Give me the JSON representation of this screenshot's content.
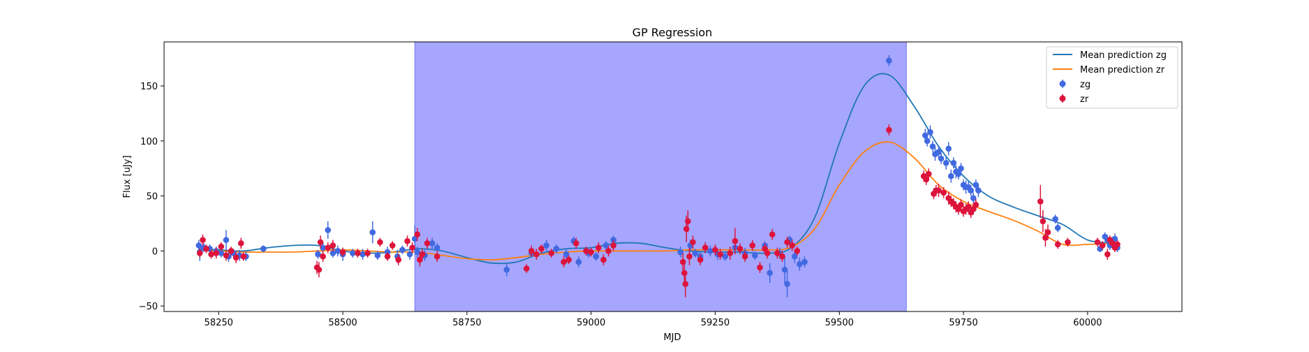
{
  "chart_data": {
    "type": "scatter",
    "title": "GP Regression",
    "xlabel": "MJD",
    "ylabel": "Flux [uJy]",
    "xlim": [
      58140,
      60190
    ],
    "ylim": [
      -55,
      190
    ],
    "xticks": [
      58250,
      58500,
      58750,
      59000,
      59250,
      59500,
      59750,
      60000
    ],
    "yticks": [
      -50,
      0,
      50,
      100,
      150
    ],
    "grid": false,
    "legend_position": "top-right",
    "shaded_region": {
      "x_start": 58645,
      "x_end": 59635,
      "color": "#a6a6ff"
    },
    "series": [
      {
        "name": "Mean prediction zg",
        "kind": "line",
        "color": "#1f77b4",
        "x": [
          58210,
          58250,
          58300,
          58350,
          58400,
          58450,
          58500,
          58550,
          58600,
          58650,
          58700,
          58750,
          58800,
          58850,
          58900,
          58950,
          59000,
          59050,
          59100,
          59150,
          59200,
          59250,
          59300,
          59350,
          59400,
          59450,
          59500,
          59550,
          59600,
          59650,
          59700,
          59750,
          59800,
          59850,
          59900,
          59950,
          60000,
          60050
        ],
        "y": [
          2,
          1,
          0,
          3,
          5,
          5,
          0,
          -2,
          -1,
          2,
          0,
          -6,
          -11,
          -10,
          -2,
          2,
          3,
          7,
          7,
          3,
          0,
          -1,
          -1,
          -2,
          2,
          30,
          98,
          150,
          160,
          132,
          95,
          68,
          50,
          40,
          32,
          24,
          10,
          7
        ]
      },
      {
        "name": "Mean prediction zr",
        "kind": "line",
        "color": "#ff7f0e",
        "x": [
          58210,
          58250,
          58300,
          58350,
          58400,
          58450,
          58500,
          58550,
          58600,
          58650,
          58700,
          58750,
          58800,
          58850,
          58900,
          58950,
          59000,
          59050,
          59100,
          59150,
          59200,
          59250,
          59300,
          59350,
          59400,
          59450,
          59500,
          59550,
          59600,
          59650,
          59700,
          59750,
          59800,
          59850,
          59900,
          59950,
          60000,
          60050
        ],
        "y": [
          1,
          0,
          -1,
          -1,
          -1,
          0,
          1,
          0,
          -1,
          -1,
          -4,
          -7,
          -8,
          -6,
          -3,
          -1,
          0,
          0,
          0,
          0,
          1,
          1,
          1,
          1,
          3,
          20,
          60,
          90,
          99,
          85,
          60,
          45,
          36,
          28,
          18,
          6,
          6,
          7
        ]
      },
      {
        "name": "zg",
        "kind": "errorbar",
        "color": "#4169e1",
        "points": [
          [
            58210,
            5,
            5
          ],
          [
            58212,
            -1,
            8
          ],
          [
            58220,
            3,
            4
          ],
          [
            58232,
            2,
            4
          ],
          [
            58245,
            0,
            4
          ],
          [
            58255,
            -2,
            4
          ],
          [
            58265,
            10,
            9
          ],
          [
            58270,
            -5,
            5
          ],
          [
            58280,
            -2,
            4
          ],
          [
            58292,
            -4,
            5
          ],
          [
            58305,
            -5,
            4
          ],
          [
            58340,
            2,
            3
          ],
          [
            58450,
            -3,
            4
          ],
          [
            58460,
            3,
            5
          ],
          [
            58470,
            19,
            8
          ],
          [
            58480,
            -2,
            4
          ],
          [
            58490,
            0,
            5
          ],
          [
            58500,
            -3,
            6
          ],
          [
            58520,
            -2,
            4
          ],
          [
            58540,
            -3,
            5
          ],
          [
            58560,
            17,
            10
          ],
          [
            58570,
            -4,
            4
          ],
          [
            58590,
            -1,
            5
          ],
          [
            58610,
            -5,
            6
          ],
          [
            58620,
            1,
            4
          ],
          [
            58635,
            -3,
            5
          ],
          [
            58645,
            11,
            12
          ],
          [
            58650,
            -1,
            5
          ],
          [
            58665,
            -4,
            5
          ],
          [
            58680,
            7,
            5
          ],
          [
            58690,
            3,
            4
          ],
          [
            58830,
            -17,
            6
          ],
          [
            58880,
            -2,
            4
          ],
          [
            58910,
            5,
            5
          ],
          [
            58930,
            2,
            4
          ],
          [
            58950,
            -3,
            5
          ],
          [
            58965,
            9,
            4
          ],
          [
            58975,
            -10,
            5
          ],
          [
            58995,
            -2,
            4
          ],
          [
            59010,
            -5,
            4
          ],
          [
            59030,
            5,
            4
          ],
          [
            59045,
            10,
            4
          ],
          [
            59180,
            -1,
            5
          ],
          [
            59200,
            5,
            5
          ],
          [
            59210,
            -2,
            4
          ],
          [
            59220,
            -5,
            4
          ],
          [
            59240,
            0,
            5
          ],
          [
            59255,
            -3,
            5
          ],
          [
            59270,
            -5,
            4
          ],
          [
            59290,
            3,
            5
          ],
          [
            59310,
            -2,
            5
          ],
          [
            59330,
            -4,
            4
          ],
          [
            59350,
            5,
            4
          ],
          [
            59360,
            -20,
            9
          ],
          [
            59380,
            -2,
            5
          ],
          [
            59390,
            -17,
            12
          ],
          [
            59395,
            -30,
            12
          ],
          [
            59400,
            10,
            4
          ],
          [
            59410,
            -5,
            6
          ],
          [
            59420,
            -12,
            6
          ],
          [
            59430,
            -10,
            5
          ],
          [
            59600,
            173,
            5
          ],
          [
            59673,
            105,
            6
          ],
          [
            59677,
            100,
            5
          ],
          [
            59683,
            108,
            6
          ],
          [
            59688,
            95,
            5
          ],
          [
            59693,
            88,
            6
          ],
          [
            59700,
            90,
            6
          ],
          [
            59705,
            84,
            5
          ],
          [
            59715,
            80,
            6
          ],
          [
            59720,
            93,
            6
          ],
          [
            59725,
            68,
            6
          ],
          [
            59730,
            80,
            5
          ],
          [
            59735,
            72,
            6
          ],
          [
            59740,
            70,
            5
          ],
          [
            59745,
            75,
            5
          ],
          [
            59750,
            60,
            5
          ],
          [
            59755,
            58,
            6
          ],
          [
            59760,
            58,
            5
          ],
          [
            59765,
            55,
            5
          ],
          [
            59770,
            48,
            5
          ],
          [
            59775,
            60,
            5
          ],
          [
            59780,
            55,
            6
          ],
          [
            59935,
            29,
            4
          ],
          [
            59940,
            21,
            4
          ],
          [
            60025,
            2,
            3
          ],
          [
            60035,
            13,
            4
          ],
          [
            60040,
            10,
            4
          ],
          [
            60045,
            5,
            4
          ],
          [
            60050,
            8,
            5
          ],
          [
            60055,
            11,
            5
          ],
          [
            60060,
            3,
            4
          ]
        ]
      },
      {
        "name": "zr",
        "kind": "errorbar",
        "color": "#dc143c",
        "points": [
          [
            58212,
            -2,
            4
          ],
          [
            58218,
            10,
            5
          ],
          [
            58225,
            2,
            4
          ],
          [
            58235,
            -3,
            4
          ],
          [
            58245,
            -2,
            5
          ],
          [
            58255,
            4,
            4
          ],
          [
            58265,
            -4,
            5
          ],
          [
            58275,
            0,
            4
          ],
          [
            58285,
            -6,
            5
          ],
          [
            58295,
            7,
            5
          ],
          [
            58300,
            -5,
            4
          ],
          [
            58448,
            -15,
            6
          ],
          [
            58452,
            -17,
            7
          ],
          [
            58455,
            8,
            6
          ],
          [
            58460,
            -5,
            5
          ],
          [
            58470,
            3,
            5
          ],
          [
            58480,
            5,
            5
          ],
          [
            58500,
            -1,
            4
          ],
          [
            58530,
            -2,
            4
          ],
          [
            58550,
            -2,
            4
          ],
          [
            58575,
            8,
            4
          ],
          [
            58590,
            -5,
            4
          ],
          [
            58600,
            5,
            4
          ],
          [
            58612,
            -8,
            5
          ],
          [
            58630,
            9,
            5
          ],
          [
            58640,
            3,
            5
          ],
          [
            58650,
            15,
            6
          ],
          [
            58655,
            -8,
            6
          ],
          [
            58660,
            -3,
            5
          ],
          [
            58670,
            7,
            5
          ],
          [
            58690,
            -5,
            5
          ],
          [
            58870,
            -16,
            4
          ],
          [
            58880,
            0,
            5
          ],
          [
            58890,
            -3,
            5
          ],
          [
            58900,
            2,
            4
          ],
          [
            58920,
            -2,
            4
          ],
          [
            58945,
            -10,
            5
          ],
          [
            58955,
            -8,
            4
          ],
          [
            58970,
            7,
            5
          ],
          [
            58990,
            0,
            4
          ],
          [
            59000,
            -1,
            4
          ],
          [
            59015,
            3,
            5
          ],
          [
            59025,
            -8,
            5
          ],
          [
            59035,
            0,
            5
          ],
          [
            59045,
            5,
            5
          ],
          [
            59185,
            -10,
            8
          ],
          [
            59188,
            -20,
            10
          ],
          [
            59190,
            -30,
            12
          ],
          [
            59192,
            20,
            12
          ],
          [
            59195,
            27,
            10
          ],
          [
            59198,
            -5,
            8
          ],
          [
            59205,
            8,
            6
          ],
          [
            59220,
            -8,
            5
          ],
          [
            59230,
            3,
            5
          ],
          [
            59250,
            1,
            5
          ],
          [
            59260,
            -3,
            5
          ],
          [
            59280,
            -2,
            6
          ],
          [
            59290,
            9,
            12
          ],
          [
            59300,
            2,
            5
          ],
          [
            59310,
            -5,
            5
          ],
          [
            59325,
            5,
            5
          ],
          [
            59340,
            -15,
            5
          ],
          [
            59350,
            2,
            5
          ],
          [
            59355,
            -2,
            5
          ],
          [
            59365,
            15,
            5
          ],
          [
            59375,
            -2,
            5
          ],
          [
            59385,
            -5,
            5
          ],
          [
            59395,
            8,
            5
          ],
          [
            59405,
            5,
            5
          ],
          [
            59415,
            0,
            4
          ],
          [
            59600,
            110,
            5
          ],
          [
            59670,
            68,
            5
          ],
          [
            59675,
            65,
            5
          ],
          [
            59680,
            70,
            5
          ],
          [
            59690,
            52,
            5
          ],
          [
            59695,
            55,
            5
          ],
          [
            59700,
            55,
            6
          ],
          [
            59710,
            53,
            5
          ],
          [
            59720,
            48,
            6
          ],
          [
            59725,
            45,
            5
          ],
          [
            59730,
            43,
            5
          ],
          [
            59735,
            40,
            5
          ],
          [
            59740,
            38,
            5
          ],
          [
            59745,
            42,
            5
          ],
          [
            59750,
            36,
            5
          ],
          [
            59755,
            38,
            5
          ],
          [
            59760,
            40,
            5
          ],
          [
            59765,
            35,
            5
          ],
          [
            59770,
            38,
            5
          ],
          [
            59775,
            42,
            5
          ],
          [
            59905,
            45,
            15
          ],
          [
            59910,
            27,
            10
          ],
          [
            59915,
            12,
            8
          ],
          [
            59920,
            17,
            7
          ],
          [
            59940,
            6,
            4
          ],
          [
            59960,
            8,
            4
          ],
          [
            60020,
            8,
            4
          ],
          [
            60030,
            5,
            4
          ],
          [
            60040,
            -3,
            5
          ],
          [
            60045,
            10,
            4
          ],
          [
            60050,
            7,
            4
          ],
          [
            60055,
            3,
            4
          ],
          [
            60060,
            6,
            4
          ]
        ]
      }
    ]
  }
}
